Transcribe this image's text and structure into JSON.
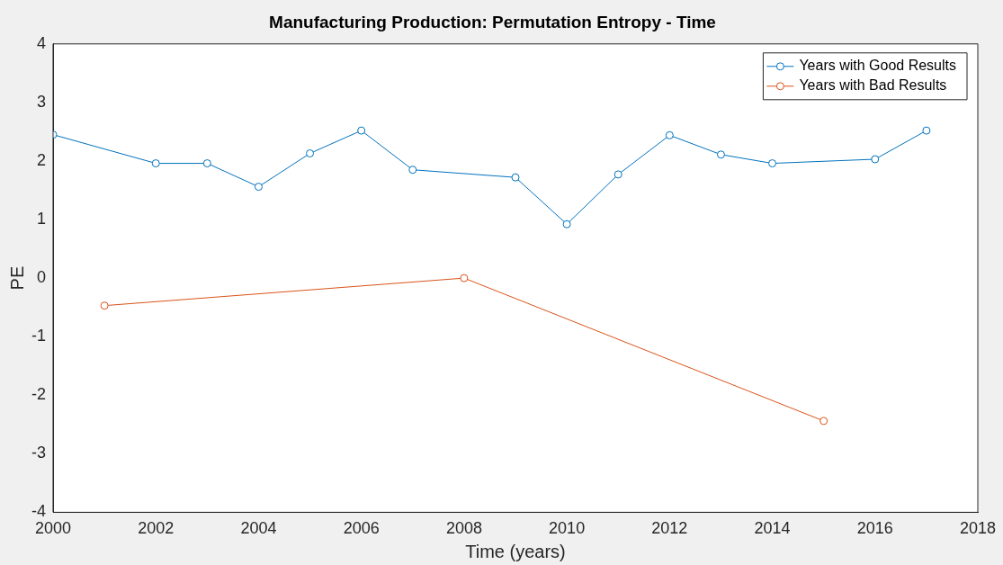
{
  "chart_data": {
    "type": "line",
    "title": "Manufacturing Production: Permutation Entropy - Time",
    "xlabel": "Time (years)",
    "ylabel": "PE",
    "xlim": [
      2000,
      2018
    ],
    "xticks": [
      2000,
      2002,
      2004,
      2006,
      2008,
      2010,
      2012,
      2014,
      2016,
      2018
    ],
    "ylim": [
      -4,
      4
    ],
    "yticks": [
      -4,
      -3,
      -2,
      -1,
      0,
      1,
      2,
      3,
      4
    ],
    "grid": false,
    "legend": "top right",
    "marker": "circle",
    "line_style": "solid",
    "series": [
      {
        "name": "Years with Good Results",
        "color": "#0072bd",
        "x": [
          2000,
          2002,
          2003,
          2004,
          2005,
          2006,
          2007,
          2009,
          2010,
          2011,
          2012,
          2013,
          2014,
          2016,
          2017
        ],
        "values": [
          2.45,
          1.96,
          1.96,
          1.56,
          2.13,
          2.52,
          1.85,
          1.72,
          0.92,
          1.77,
          2.44,
          2.11,
          1.96,
          2.03,
          2.52
        ]
      },
      {
        "name": "Years with Bad Results",
        "color": "#d95319",
        "x": [
          2001,
          2008,
          2015
        ],
        "values": [
          -0.47,
          0,
          -2.44
        ]
      }
    ]
  }
}
